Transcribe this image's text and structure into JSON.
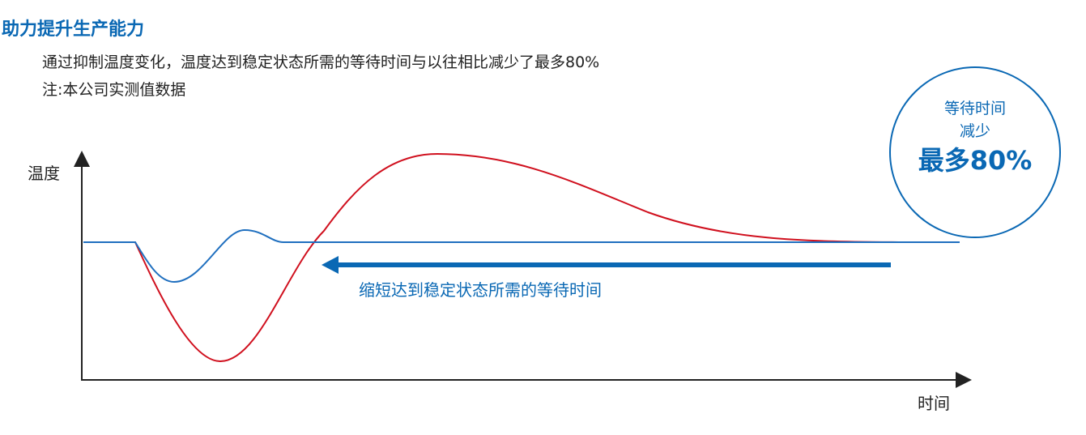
{
  "title": "助力提升生产能力",
  "description": "通过抑制温度变化，温度达到稳定状态所需的等待时间与以往相比减少了最多80%",
  "note": "注:本公司实测值数据",
  "axes": {
    "y_label": "温度",
    "x_label": "时间"
  },
  "arrow_label": "缩短达到稳定状态所需的等待时间",
  "badge": {
    "line1": "等待时间",
    "line2": "减少",
    "line3": "最多80%"
  },
  "colors": {
    "accent": "#0a68b4",
    "new_curve": "#1f6fbf",
    "old_curve": "#d0101e"
  }
}
